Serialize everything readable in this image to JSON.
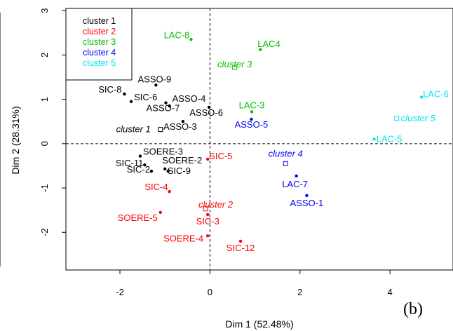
{
  "chart_data": {
    "type": "scatter",
    "xlabel": "Dim 1 (52.48%)",
    "ylabel": "Dim 2 (28.31%)",
    "xlim": [
      -3.2,
      5.4
    ],
    "ylim": [
      -2.85,
      3.05
    ],
    "xticks": [
      -2,
      0,
      2,
      4
    ],
    "yticks": [
      -2,
      -1,
      0,
      1,
      2,
      3
    ],
    "xtick_labels": [
      "-2",
      "0",
      "2",
      "4"
    ],
    "ytick_labels": [
      "-2",
      "-1",
      "0",
      "1",
      "2",
      "3"
    ],
    "grid": false,
    "legend_position": "top-left",
    "annotation": "(b)",
    "series": [
      {
        "name": "cluster 1",
        "color": "#000000",
        "points": [
          {
            "label": "ASSO-9",
            "x": -1.2,
            "y": 1.32
          },
          {
            "label": "SIC-8",
            "x": -1.9,
            "y": 1.12
          },
          {
            "label": "SIC-6",
            "x": -1.75,
            "y": 0.95
          },
          {
            "label": "ASSO-4",
            "x": -0.9,
            "y": 0.85
          },
          {
            "label": "ASSO-7",
            "x": -0.98,
            "y": 0.92
          },
          {
            "label": "ASSO-6",
            "x": -0.02,
            "y": 0.82
          },
          {
            "label": "ASSO-3",
            "x": -0.6,
            "y": 0.5
          },
          {
            "label": "SOERE-3",
            "x": -1.55,
            "y": -0.28
          },
          {
            "label": "SIC-11",
            "x": -1.45,
            "y": -0.48
          },
          {
            "label": "SIC-2",
            "x": -1.3,
            "y": -0.62
          },
          {
            "label": "SOERE-2",
            "x": -1.0,
            "y": -0.57
          },
          {
            "label": "SIC-9",
            "x": -0.93,
            "y": -0.62
          }
        ],
        "centroid": {
          "label": "cluster 1",
          "x": -1.1,
          "y": 0.32
        }
      },
      {
        "name": "cluster 2",
        "color": "#ff0000",
        "points": [
          {
            "label": "SIC-5",
            "x": -0.05,
            "y": -0.35
          },
          {
            "label": "SIC-4",
            "x": -0.9,
            "y": -1.08
          },
          {
            "label": "SOERE-5",
            "x": -1.1,
            "y": -1.55
          },
          {
            "label": "SIC-3",
            "x": -0.05,
            "y": -1.6
          },
          {
            "label": "SOERE-4",
            "x": -0.05,
            "y": -2.08
          },
          {
            "label": "SIC-12",
            "x": 0.68,
            "y": -2.2
          }
        ],
        "centroid": {
          "label": "cluster 2",
          "x": -0.1,
          "y": -1.47
        }
      },
      {
        "name": "cluster 3",
        "color": "#00c000",
        "points": [
          {
            "label": "LAC-8",
            "x": -0.42,
            "y": 2.35
          },
          {
            "label": "LAC4",
            "x": 1.12,
            "y": 2.12
          },
          {
            "label": "LAC-3",
            "x": 0.93,
            "y": 0.72
          }
        ],
        "centroid": {
          "label": "cluster 3",
          "x": 0.55,
          "y": 1.72
        }
      },
      {
        "name": "cluster 4",
        "color": "#0000ff",
        "points": [
          {
            "label": "ASSO-5",
            "x": 0.92,
            "y": 0.55
          },
          {
            "label": "LAC-7",
            "x": 1.92,
            "y": -0.73
          },
          {
            "label": "ASSO-1",
            "x": 2.15,
            "y": -1.17
          }
        ],
        "centroid": {
          "label": "cluster 4",
          "x": 1.68,
          "y": -0.45
        }
      },
      {
        "name": "cluster 5",
        "color": "#00e5ee",
        "points": [
          {
            "label": "LAC-6",
            "x": 4.7,
            "y": 1.05
          },
          {
            "label": "LAC-5",
            "x": 3.65,
            "y": 0.1
          }
        ],
        "centroid": {
          "label": "cluster 5",
          "x": 4.15,
          "y": 0.57
        }
      }
    ]
  }
}
